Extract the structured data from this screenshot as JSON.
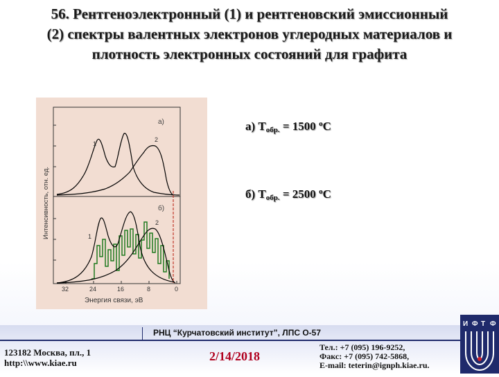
{
  "slide": {
    "title_line1": "56. Рентгеноэлектронный (1) и рентгеновский эмиссионный",
    "title_line2": "(2) спектры валентных электронов углеродных материалов и",
    "title_line3": "плотность электронных состояний для графита"
  },
  "figure": {
    "y_axis_label": "Интенсивность, отн. ед.",
    "x_axis_label": "Энергия связи, эВ",
    "x_ticks": [
      "32",
      "24",
      "16",
      "8",
      "0"
    ],
    "panel_a_label": "а)",
    "panel_b_label": "б)",
    "curve_1_label": "1",
    "curve_2_label": "2",
    "colors": {
      "background": "#f2ddd2",
      "curves": "#000000",
      "dos": "#1e7a1e",
      "fermi_line": "#c0392b"
    }
  },
  "captions": {
    "a_prefix": "а) T",
    "a_sub": "обр.",
    "a_value": " = 1500 ",
    "a_deg": "о",
    "a_unit": "С",
    "b_prefix": "б) T",
    "b_sub": "обр.",
    "b_value": " = 2500 ",
    "b_deg": "о",
    "b_unit": "С"
  },
  "footer": {
    "org": "РНЦ “Курчатовский институт”,   ЛПС О-57",
    "address_line1": "123182 Москва, пл., 1",
    "address_line2": "http:\\\\www.kiae.ru",
    "date": "2/14/2018",
    "phone": "Тел.:    +7 (095) 196-9252,",
    "fax": "Факс:  +7 (095) 742-5868,",
    "email": "E-mail: teterin@ignph.kiae.ru.",
    "logo_letters": [
      "И",
      "Ф",
      "Т",
      "Ф"
    ]
  }
}
